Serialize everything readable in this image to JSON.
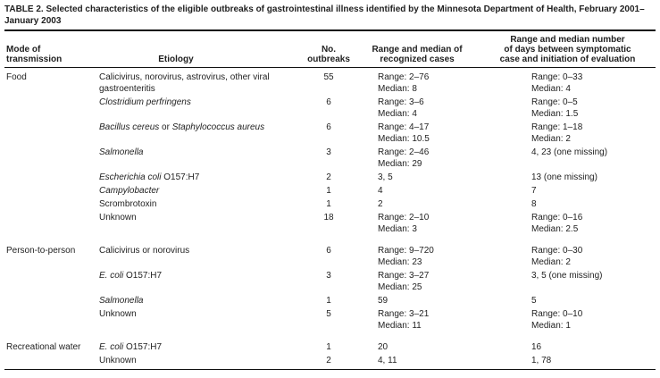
{
  "title": "TABLE 2. Selected characteristics of the eligible outbreaks of gastrointestinal illness identified by the Minnesota Department of Health, February 2001–January 2003",
  "colors": {
    "text": "#1f1f1f",
    "rule": "#111111",
    "background": "#ffffff"
  },
  "table": {
    "columns": [
      {
        "label": "Mode of transmission",
        "lines": [
          "Mode of",
          "transmission"
        ]
      },
      {
        "label": "Etiology",
        "lines": [
          "Etiology"
        ]
      },
      {
        "label": "No. outbreaks",
        "lines": [
          "No.",
          "outbreaks"
        ]
      },
      {
        "label": "Range and median of recognized cases",
        "lines": [
          "Range and median of",
          "recognized cases"
        ]
      },
      {
        "label": "Range and median number of days between symptomatic case and initiation of evaluation",
        "lines": [
          "Range and median number",
          "of days between symptomatic",
          "case and initiation of evaluation"
        ]
      }
    ],
    "rows": [
      {
        "mode": "Food",
        "etiology": {
          "regular": "Calicivirus, norovirus, astrovirus, other viral gastroenteritis"
        },
        "outbreaks": "55",
        "cases": [
          "Range: 2–76",
          "Median: 8"
        ],
        "days": [
          "Range: 0–33",
          "Median: 4"
        ]
      },
      {
        "etiology": {
          "italic1": "Clostridium perfringens"
        },
        "outbreaks": "6",
        "cases": [
          "Range: 3–6",
          "Median: 4"
        ],
        "days": [
          "Range: 0–5",
          "Median: 1.5"
        ]
      },
      {
        "etiology": {
          "italic1": "Bacillus cereus",
          "regular": " or ",
          "italic2": "Staphylococcus aureus"
        },
        "outbreaks": "6",
        "cases": [
          "Range: 4–17",
          "Median: 10.5"
        ],
        "days": [
          "Range: 1–18",
          "Median: 2"
        ]
      },
      {
        "etiology": {
          "italic1": "Salmonella"
        },
        "outbreaks": "3",
        "cases": [
          "Range: 2–46",
          "Median: 29"
        ],
        "days": [
          "4, 23 (one missing)"
        ]
      },
      {
        "etiology": {
          "italic1": "Escherichia coli",
          "regular": " O157:H7"
        },
        "outbreaks": "2",
        "cases": [
          "3, 5"
        ],
        "days": [
          "13 (one missing)"
        ]
      },
      {
        "etiology": {
          "italic1": "Campylobacter"
        },
        "outbreaks": "1",
        "cases": [
          "4"
        ],
        "days": [
          "7"
        ]
      },
      {
        "etiology": {
          "regular": "Scrombrotoxin"
        },
        "outbreaks": "1",
        "cases": [
          "2"
        ],
        "days": [
          "8"
        ]
      },
      {
        "etiology": {
          "regular": "Unknown"
        },
        "outbreaks": "18",
        "cases": [
          "Range: 2–10",
          "Median: 3"
        ],
        "days": [
          "Range: 0–16",
          "Median: 2.5"
        ]
      },
      {
        "mode": "Person-to-person",
        "etiology": {
          "regular": "Calicivirus or norovirus"
        },
        "outbreaks": "6",
        "cases": [
          "Range: 9–720",
          "Median: 23"
        ],
        "days": [
          "Range: 0–30",
          "Median: 2"
        ]
      },
      {
        "etiology": {
          "italic1": "E. coli",
          "regular": " O157:H7"
        },
        "outbreaks": "3",
        "cases": [
          "Range: 3–27",
          "Median: 25"
        ],
        "days": [
          "3, 5 (one missing)"
        ]
      },
      {
        "etiology": {
          "italic1": "Salmonella"
        },
        "outbreaks": "1",
        "cases": [
          "59"
        ],
        "days": [
          "5"
        ]
      },
      {
        "etiology": {
          "regular": "Unknown"
        },
        "outbreaks": "5",
        "cases": [
          "Range: 3–21",
          "Median: 11"
        ],
        "days": [
          "Range: 0–10",
          "Median: 1"
        ]
      },
      {
        "mode": "Recreational water",
        "etiology": {
          "italic1": "E. coli",
          "regular": " O157:H7"
        },
        "outbreaks": "1",
        "cases": [
          "20"
        ],
        "days": [
          "16"
        ]
      },
      {
        "etiology": {
          "regular": "Unknown"
        },
        "outbreaks": "2",
        "cases": [
          "4, 11"
        ],
        "days": [
          "1, 78"
        ]
      }
    ]
  }
}
